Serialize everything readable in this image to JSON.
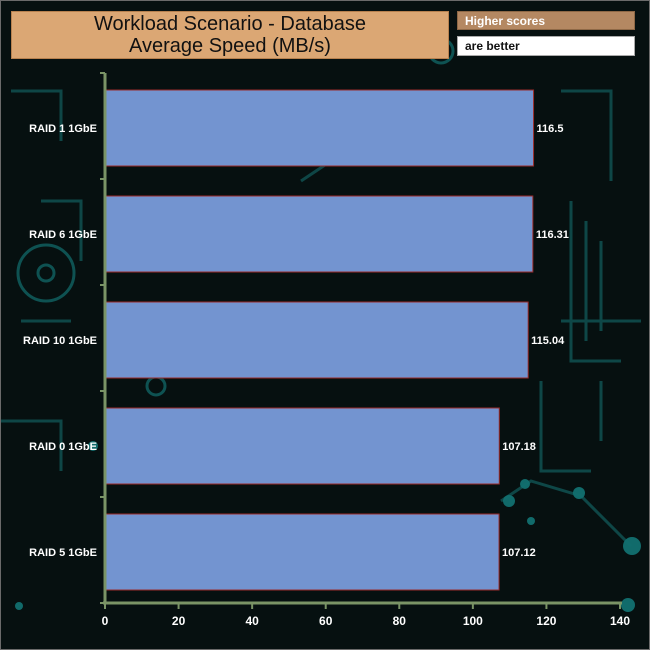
{
  "chart_data": {
    "type": "bar",
    "orientation": "horizontal",
    "title": "Workload Scenario - Database",
    "subtitle": "Average Speed (MB/s)",
    "categories": [
      "RAID 1 1GbE",
      "RAID 6 1GbE",
      "RAID 10 1GbE",
      "RAID 0 1GbE",
      "RAID 5 1GbE"
    ],
    "values": [
      116.5,
      116.31,
      115.04,
      107.18,
      107.12
    ],
    "value_labels": [
      "116.5",
      "116.31",
      "115.04",
      "107.18",
      "107.12"
    ],
    "xlim": [
      0,
      140
    ],
    "xticks": [
      0,
      20,
      40,
      60,
      80,
      100,
      120,
      140
    ],
    "grid": false,
    "bar_color": "#7394d0",
    "bar_border_color": "#9a2a2a",
    "axis_color": "#7a9466"
  },
  "legend": {
    "line1": "Higher scores",
    "line2": "are better",
    "line1_bg": "#b48862",
    "line2_bg": "#ffffff"
  },
  "title_box_color": "#dba774"
}
